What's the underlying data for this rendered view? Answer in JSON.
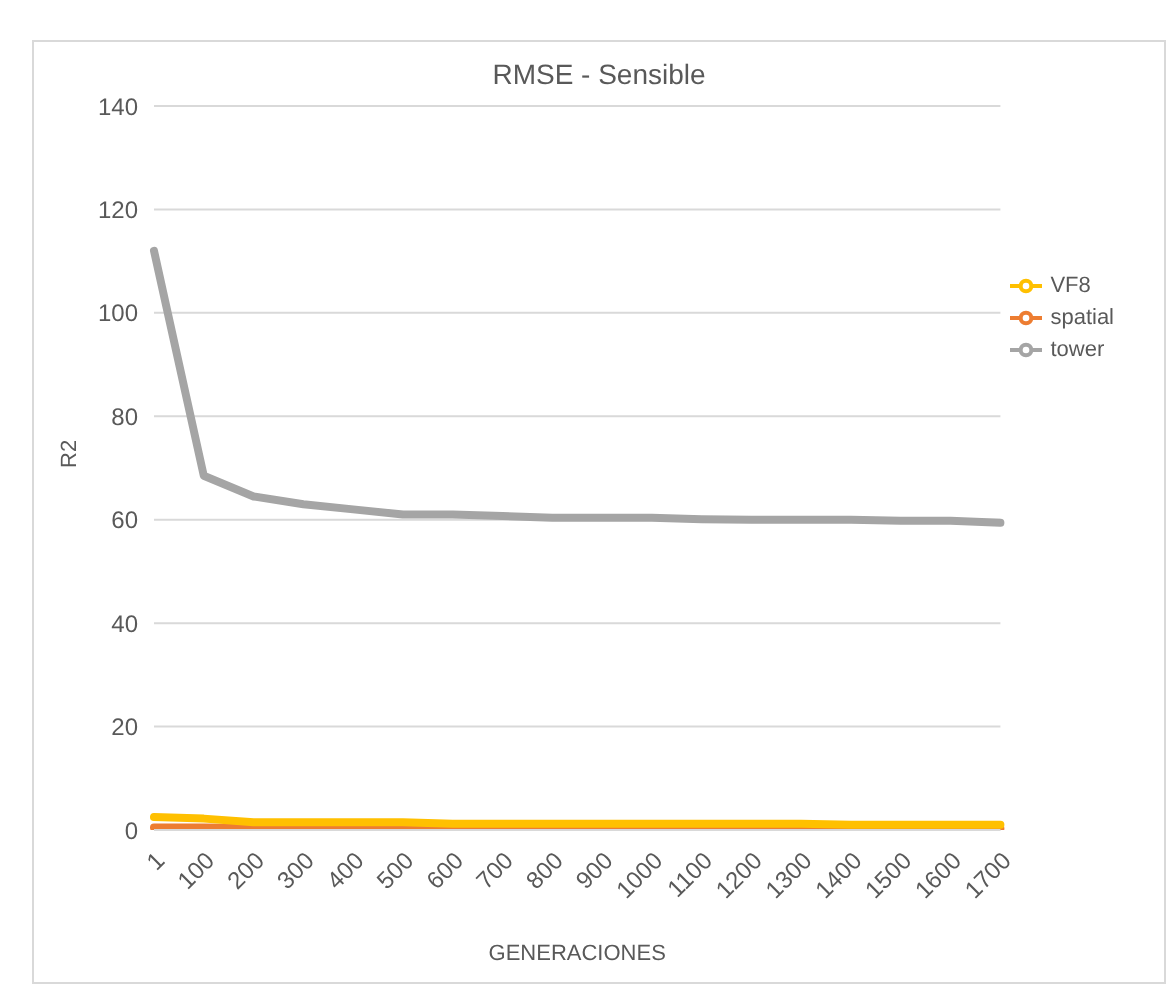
{
  "chart_data": {
    "type": "line",
    "title": "RMSE - Sensible",
    "xlabel": "GENERACIONES",
    "ylabel": "R2",
    "categories": [
      "1",
      "100",
      "200",
      "300",
      "400",
      "500",
      "600",
      "700",
      "800",
      "900",
      "1000",
      "1100",
      "1200",
      "1300",
      "1400",
      "1500",
      "1600",
      "1700"
    ],
    "series": [
      {
        "name": "spatial",
        "color": "#ed7d31",
        "values": [
          0.5,
          0.5,
          0.4,
          0.4,
          0.4,
          0.4,
          0.3,
          0.3,
          0.3,
          0.3,
          0.3,
          0.3,
          0.3,
          0.3,
          0.3,
          0.3,
          0.3,
          0.3
        ]
      },
      {
        "name": "tower",
        "color": "#a5a5a5",
        "values": [
          112,
          68.5,
          64.5,
          63,
          62,
          61,
          61,
          60.7,
          60.4,
          60.4,
          60.4,
          60.1,
          60,
          60,
          60,
          59.8,
          59.8,
          59.4
        ]
      },
      {
        "name": "VF8",
        "color": "#ffc000",
        "values": [
          2.5,
          2.2,
          1.5,
          1.5,
          1.5,
          1.5,
          1.2,
          1.2,
          1.2,
          1.2,
          1.2,
          1.2,
          1.2,
          1.2,
          1,
          1,
          1,
          1
        ]
      }
    ],
    "ylim": [
      0,
      140
    ],
    "yticks": [
      0,
      20,
      40,
      60,
      80,
      100,
      120,
      140
    ],
    "grid": "y",
    "legend": "top right",
    "marker": "none",
    "line_style": "solid"
  }
}
